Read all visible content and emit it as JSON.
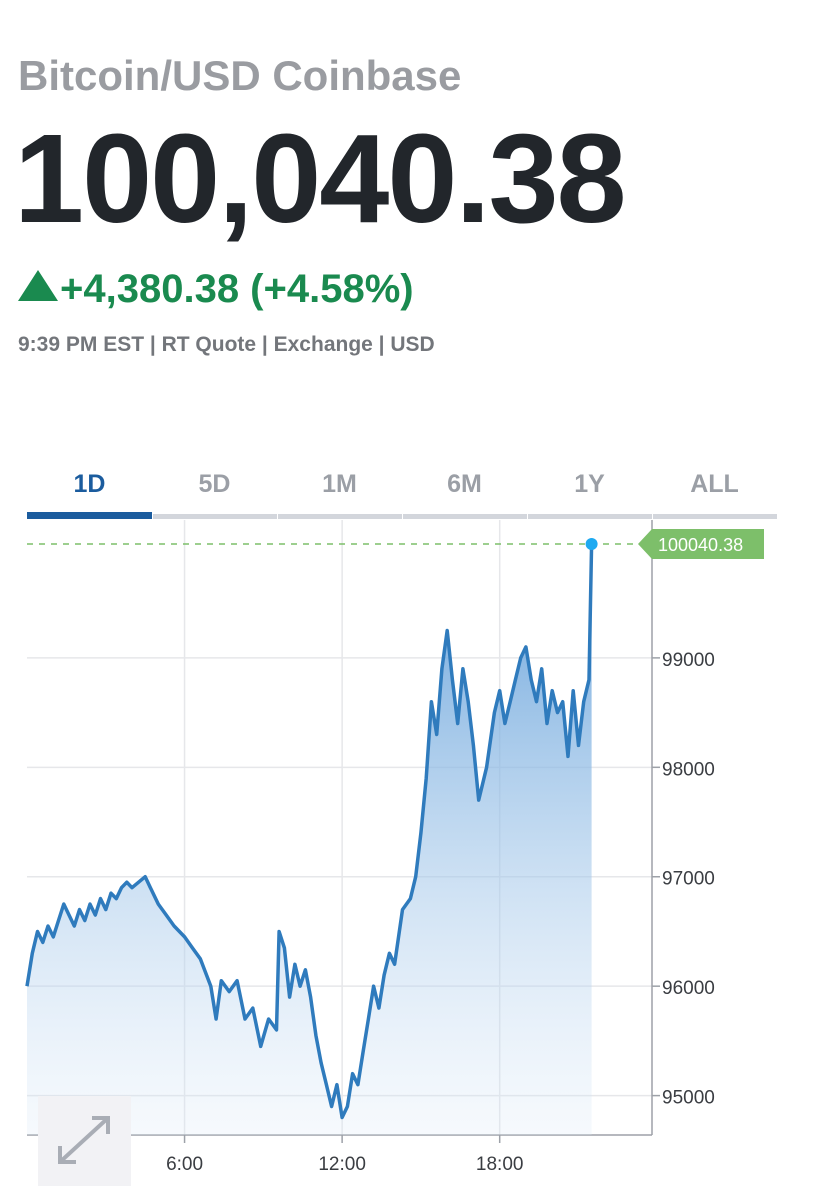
{
  "header": {
    "title": "Bitcoin/USD Coinbase",
    "price": "100,040.38",
    "change": "+4,380.38 (+4.58%)",
    "meta": "9:39 PM EST | RT Quote | Exchange | USD"
  },
  "tabs": [
    "1D",
    "5D",
    "1M",
    "6M",
    "1Y",
    "ALL"
  ],
  "active_tab": 0,
  "chart_data": {
    "type": "area",
    "x": [
      0.0,
      0.2,
      0.4,
      0.6,
      0.8,
      1.0,
      1.2,
      1.4,
      1.6,
      1.8,
      2.0,
      2.2,
      2.4,
      2.6,
      2.8,
      3.0,
      3.2,
      3.4,
      3.6,
      3.8,
      4.0,
      4.5,
      4.7,
      5.0,
      5.3,
      5.6,
      6.0,
      6.3,
      6.6,
      7.0,
      7.2,
      7.4,
      7.7,
      8.0,
      8.3,
      8.6,
      8.9,
      9.2,
      9.5,
      9.6,
      9.8,
      10.0,
      10.2,
      10.4,
      10.6,
      10.8,
      11.0,
      11.2,
      11.4,
      11.6,
      11.8,
      12.0,
      12.2,
      12.4,
      12.6,
      12.8,
      13.0,
      13.2,
      13.4,
      13.6,
      13.8,
      14.0,
      14.3,
      14.6,
      14.8,
      15.0,
      15.2,
      15.4,
      15.6,
      15.8,
      16.0,
      16.2,
      16.4,
      16.6,
      16.8,
      17.0,
      17.2,
      17.5,
      17.8,
      18.0,
      18.2,
      18.4,
      18.6,
      18.8,
      19.0,
      19.2,
      19.4,
      19.6,
      19.8,
      20.0,
      20.2,
      20.4,
      20.6,
      20.8,
      21.0,
      21.2,
      21.4,
      21.5
    ],
    "series": [
      {
        "name": "Bitcoin/USD",
        "color": "#2f7bbd",
        "values": [
          96000,
          96300,
          96500,
          96400,
          96550,
          96450,
          96600,
          96750,
          96650,
          96550,
          96700,
          96600,
          96750,
          96650,
          96800,
          96700,
          96850,
          96800,
          96900,
          96950,
          96900,
          97000,
          96900,
          96750,
          96650,
          96550,
          96450,
          96350,
          96250,
          96000,
          95700,
          96050,
          95950,
          96050,
          95700,
          95800,
          95450,
          95700,
          95600,
          96500,
          96350,
          95900,
          96200,
          96000,
          96150,
          95900,
          95550,
          95300,
          95100,
          94900,
          95100,
          94800,
          94900,
          95200,
          95100,
          95400,
          95700,
          96000,
          95800,
          96100,
          96300,
          96200,
          96700,
          96800,
          97000,
          97400,
          97900,
          98600,
          98300,
          98900,
          99250,
          98800,
          98400,
          98900,
          98600,
          98200,
          97700,
          98000,
          98500,
          98700,
          98400,
          98600,
          98800,
          99000,
          99100,
          98800,
          98600,
          98900,
          98400,
          98700,
          98500,
          98600,
          98100,
          98700,
          98200,
          98600,
          98800,
          100040.38
        ]
      }
    ],
    "xlim": [
      0,
      23.8
    ],
    "xticks": [
      {
        "value": 6,
        "label": "6:00"
      },
      {
        "value": 12,
        "label": "12:00"
      },
      {
        "value": 18,
        "label": "18:00"
      }
    ],
    "ylim": [
      94640,
      100260
    ],
    "yticks": [
      95000,
      96000,
      97000,
      98000,
      99000
    ],
    "grid": true,
    "last_color": "#7dbf6a"
  }
}
